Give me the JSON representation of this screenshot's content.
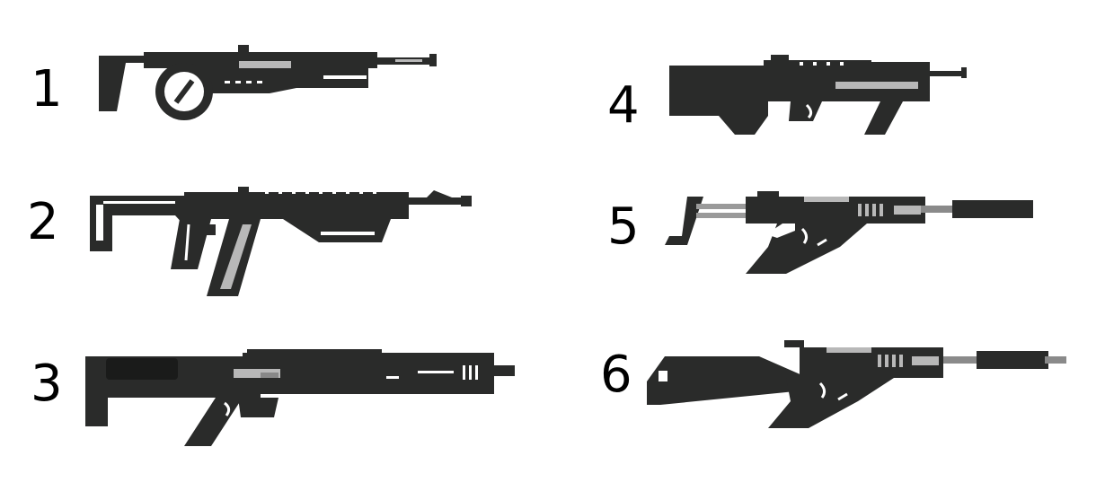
{
  "sheet": {
    "background": "#ffffff",
    "ink_color": "#000000",
    "body_color": "#2a2b2a",
    "accent_color": "#b8b8b8",
    "items": [
      {
        "number": "1"
      },
      {
        "number": "2"
      },
      {
        "number": "3"
      },
      {
        "number": "4"
      },
      {
        "number": "5"
      },
      {
        "number": "6"
      }
    ]
  }
}
